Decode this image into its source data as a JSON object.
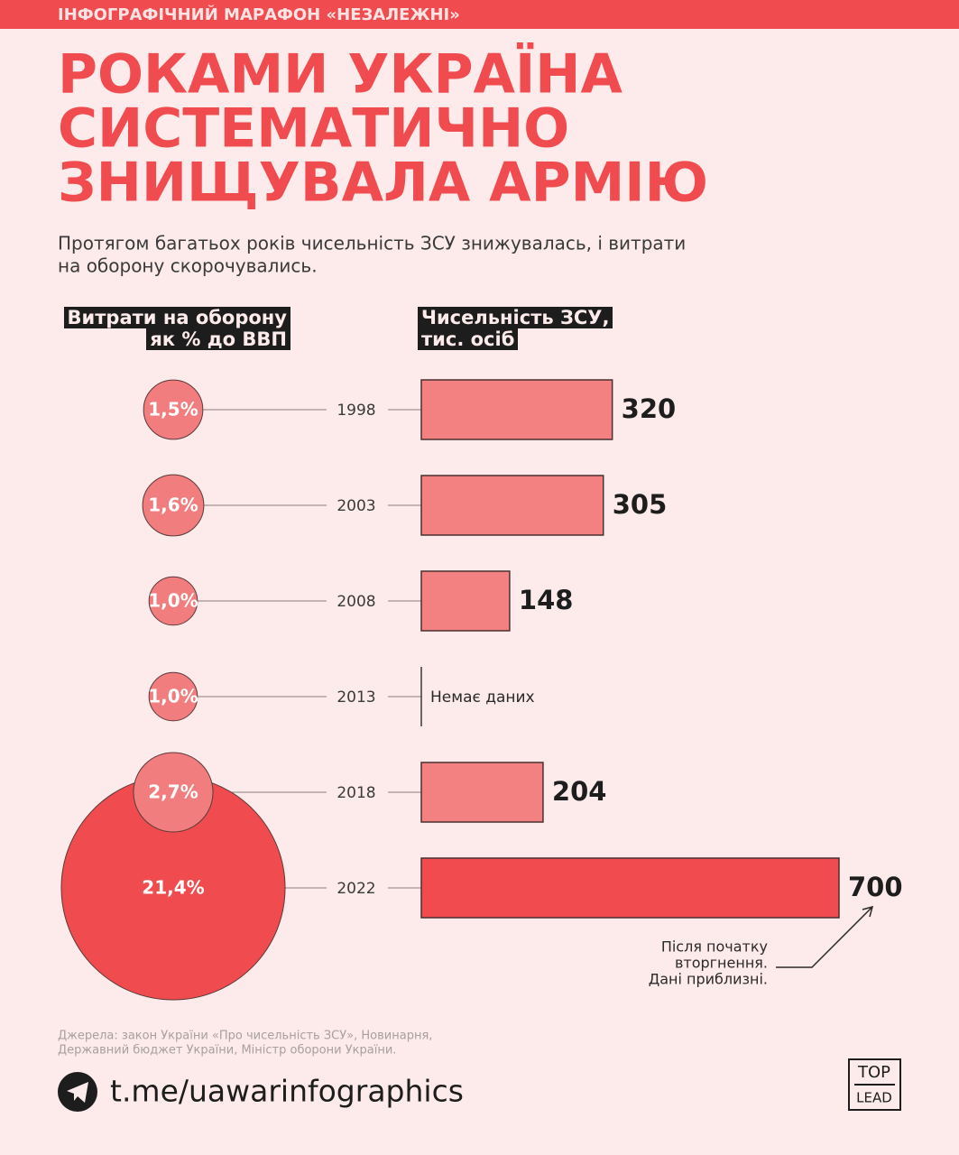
{
  "header": "ІНФОГРАФІЧНИЙ МАРАФОН «НЕЗАЛЕЖНІ»",
  "title": [
    "РОКАМИ УКРАЇНА",
    "СИСТЕМАТИЧНО",
    "ЗНИЩУВАЛА АРМІЮ"
  ],
  "subtitle": [
    "Протягом багатьох років чисельність ЗСУ знижувалась, і витрати",
    "на оборону скорочувались."
  ],
  "chart_data": {
    "type": "bubble-bar",
    "categories": [
      "1998",
      "2003",
      "2008",
      "2013",
      "2018",
      "2022"
    ],
    "series": [
      {
        "name": "Витрати на оборону\nяк % до ВВП",
        "display": "bubble",
        "values": [
          1.5,
          1.6,
          1.0,
          1.0,
          2.7,
          21.4
        ],
        "value_labels": [
          "1,5%",
          "1,6%",
          "1,0%",
          "1,0%",
          "2,7%",
          "21,4%"
        ],
        "colors": [
          "#f27d7e",
          "#f27d7e",
          "#f27d7e",
          "#f27d7e",
          "#f27d7e",
          "#f04b4f"
        ]
      },
      {
        "name": "Чисельність ЗСУ,\nтис. осіб",
        "display": "bar",
        "values": [
          320,
          305,
          148,
          null,
          204,
          700
        ],
        "colors": [
          "#f48181",
          "#f48181",
          "#f48181",
          "#f48181",
          "#f48181",
          "#f14b50"
        ]
      }
    ],
    "no_data_label": "Немає даних",
    "annotation": [
      "Після початку",
      "вторгнення.",
      "Дані приблизні."
    ]
  },
  "sources": [
    "Джерела: закон України «Про чисельність ЗСУ», Новинарня,",
    "Державний бюджет України, Міністр оборони України."
  ],
  "link": "t.me/uawarinfographics",
  "logo": [
    "TOP",
    "LEAD"
  ]
}
